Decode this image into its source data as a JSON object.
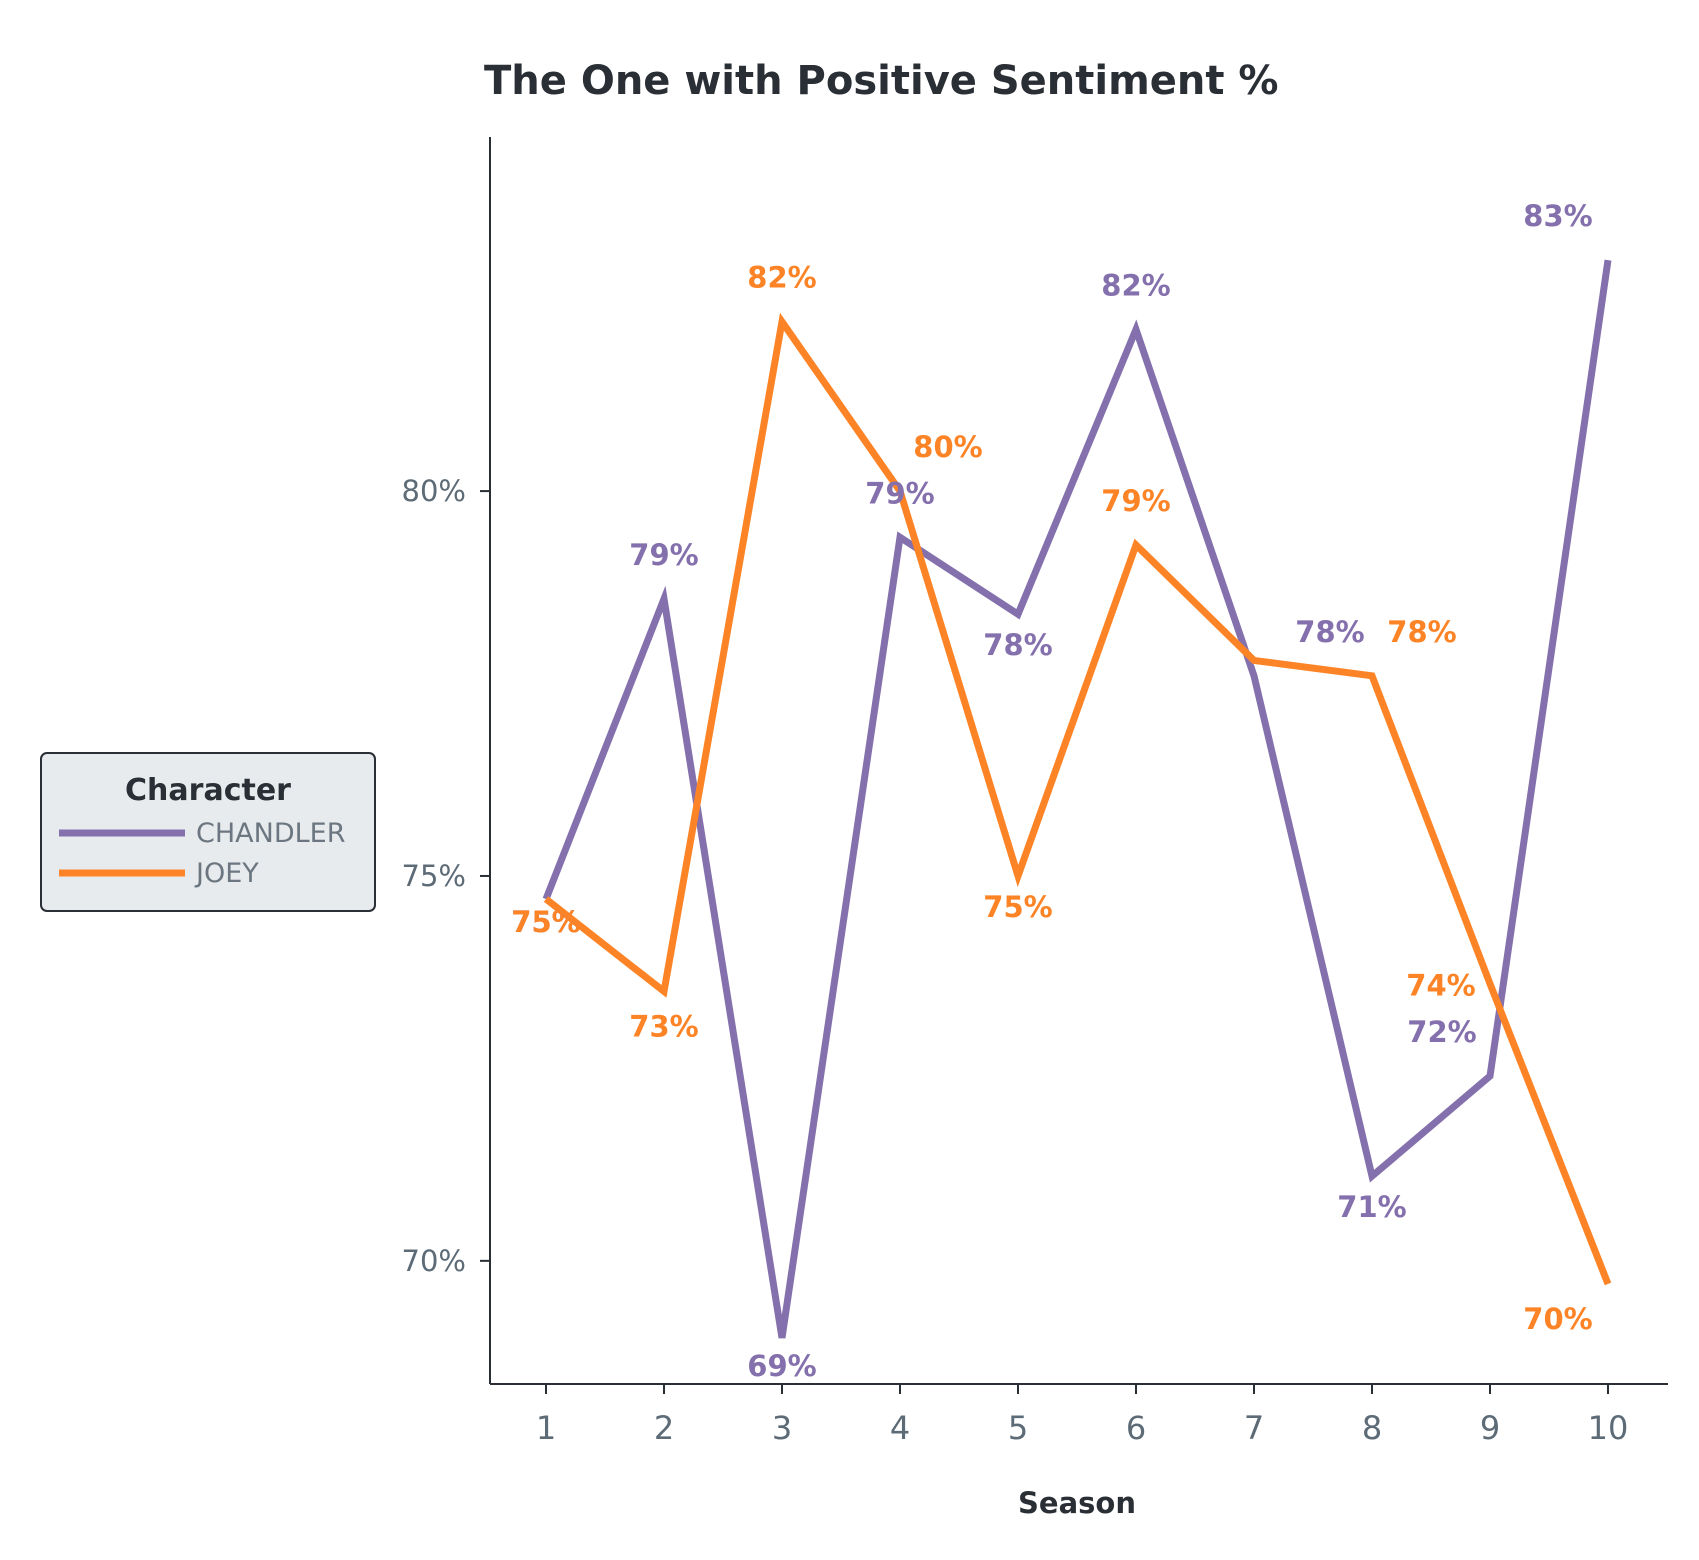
{
  "chart_data": {
    "type": "line",
    "title": "The One with Positive Sentiment %",
    "xlabel": "Season",
    "ylabel": "",
    "x": [
      1,
      2,
      3,
      4,
      5,
      6,
      7,
      8,
      9,
      10
    ],
    "x_tick_labels": [
      "1",
      "2",
      "3",
      "4",
      "5",
      "6",
      "7",
      "8",
      "9",
      "10"
    ],
    "y_ticks": [
      70,
      75,
      80
    ],
    "y_tick_labels": [
      "70%",
      "75%",
      "80%"
    ],
    "ylim": [
      68.4,
      84.6
    ],
    "grid": false,
    "legend": {
      "title": "Character",
      "placement": "left"
    },
    "series": [
      {
        "name": "CHANDLER",
        "color": "#8470ac",
        "values": [
          74.7,
          78.6,
          69.0,
          79.4,
          78.4,
          82.1,
          77.6,
          71.1,
          72.4,
          83.0
        ],
        "labels": [
          "75%",
          "79%",
          "69%",
          "79%",
          "78%",
          "82%",
          "78%",
          "71%",
          "72%",
          "83%"
        ]
      },
      {
        "name": "JOEY",
        "color": "#fd8426",
        "values": [
          74.7,
          73.5,
          82.2,
          80.0,
          75.0,
          79.3,
          77.8,
          77.6,
          73.6,
          69.7
        ],
        "labels": [
          "75%",
          "73%",
          "82%",
          "80%",
          "75%",
          "79%",
          "78%",
          "78%",
          "74%",
          "70%"
        ]
      }
    ]
  }
}
